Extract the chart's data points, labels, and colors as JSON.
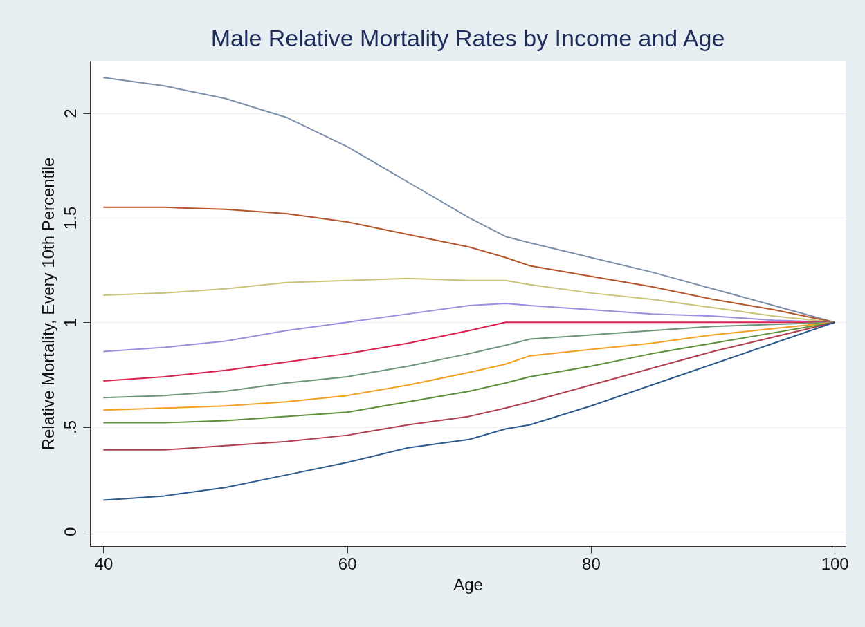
{
  "chart_data": {
    "type": "line",
    "title": "Male Relative Mortality Rates by Income and Age",
    "xlabel": "Age",
    "ylabel": "Relative Mortality, Every 10th Percentile",
    "x": [
      40,
      45,
      50,
      55,
      60,
      65,
      70,
      73,
      75,
      80,
      85,
      90,
      95,
      100
    ],
    "series": [
      {
        "color": "#7b8fa8",
        "values": [
          2.17,
          2.13,
          2.07,
          1.98,
          1.84,
          1.67,
          1.5,
          1.41,
          1.38,
          1.31,
          1.24,
          1.16,
          1.08,
          1.0
        ]
      },
      {
        "color": "#b5562a",
        "values": [
          1.55,
          1.55,
          1.54,
          1.52,
          1.48,
          1.42,
          1.36,
          1.31,
          1.27,
          1.22,
          1.17,
          1.11,
          1.06,
          1.0
        ]
      },
      {
        "color": "#c9c478",
        "values": [
          1.13,
          1.14,
          1.16,
          1.19,
          1.2,
          1.21,
          1.2,
          1.2,
          1.18,
          1.14,
          1.11,
          1.07,
          1.03,
          1.0
        ]
      },
      {
        "color": "#9a8ee0",
        "values": [
          0.86,
          0.88,
          0.91,
          0.96,
          1.0,
          1.04,
          1.08,
          1.09,
          1.08,
          1.06,
          1.04,
          1.03,
          1.01,
          1.0
        ]
      },
      {
        "color": "#d9204e",
        "values": [
          0.72,
          0.74,
          0.77,
          0.81,
          0.85,
          0.9,
          0.96,
          1.0,
          1.0,
          1.0,
          1.0,
          1.0,
          1.0,
          1.0
        ]
      },
      {
        "color": "#6e957a",
        "values": [
          0.64,
          0.65,
          0.67,
          0.71,
          0.74,
          0.79,
          0.85,
          0.89,
          0.92,
          0.94,
          0.96,
          0.98,
          0.99,
          1.0
        ]
      },
      {
        "color": "#f3a020",
        "values": [
          0.58,
          0.59,
          0.6,
          0.62,
          0.65,
          0.7,
          0.76,
          0.8,
          0.84,
          0.87,
          0.9,
          0.94,
          0.97,
          1.0
        ]
      },
      {
        "color": "#5d8f3a",
        "values": [
          0.52,
          0.52,
          0.53,
          0.55,
          0.57,
          0.62,
          0.67,
          0.71,
          0.74,
          0.79,
          0.85,
          0.9,
          0.95,
          1.0
        ]
      },
      {
        "color": "#b04050",
        "values": [
          0.39,
          0.39,
          0.41,
          0.43,
          0.46,
          0.51,
          0.55,
          0.59,
          0.62,
          0.7,
          0.78,
          0.86,
          0.93,
          1.0
        ]
      },
      {
        "color": "#2b5a8c",
        "values": [
          0.15,
          0.17,
          0.21,
          0.27,
          0.33,
          0.4,
          0.44,
          0.49,
          0.51,
          0.6,
          0.7,
          0.8,
          0.9,
          1.0
        ]
      }
    ],
    "xlim": [
      38.9,
      100.9
    ],
    "xticks": [
      40,
      60,
      80,
      100
    ],
    "ylim": [
      -0.07,
      2.25
    ],
    "yticks": [
      0,
      {
        "value": 0.5,
        "label": ".5"
      },
      1,
      1.5,
      2
    ],
    "grid": "y"
  }
}
